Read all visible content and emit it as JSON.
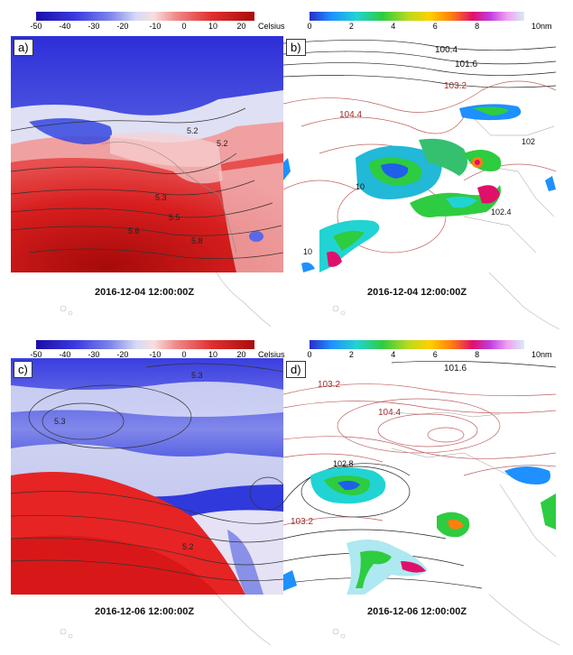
{
  "figure": {
    "temperature_colorbar": {
      "ticks": [
        "-50",
        "-40",
        "-30",
        "-20",
        "-10",
        "0",
        "10",
        "20"
      ],
      "unit": "Celsius",
      "colors": [
        "#1b0ea8",
        "#3a3ae0",
        "#7d85ea",
        "#d6dbf5",
        "#f8dede",
        "#ef8a8a",
        "#e03131",
        "#a80c0c"
      ]
    },
    "visibility_colorbar": {
      "ticks": [
        "0",
        "2",
        "4",
        "6",
        "8"
      ],
      "unit": "10nm",
      "colors": [
        "#2c2cc8",
        "#1e90ff",
        "#22d3d3",
        "#2ecc40",
        "#bada1f",
        "#ffd000",
        "#ff7f0e",
        "#e0106a",
        "#c03ce0",
        "#f0a0f0",
        "#d6ecf6"
      ]
    },
    "panels": [
      {
        "label": "a)",
        "date": "2016-12-04 12:00:00Z",
        "variable": "temperature",
        "contour_labels": [
          "5.2",
          "5.2",
          "5.3",
          "5.5",
          "5.6",
          "5.8"
        ]
      },
      {
        "label": "b)",
        "date": "2016-12-04 12:00:00Z",
        "variable": "visibility",
        "contour_labels": [
          "100.4",
          "101.6",
          "103.2",
          "104.4",
          "102",
          "10",
          "10",
          "102.4"
        ]
      },
      {
        "label": "c)",
        "date": "2016-12-06 12:00:00Z",
        "variable": "temperature",
        "contour_labels": [
          "5.3",
          "5.3",
          "5.2"
        ]
      },
      {
        "label": "d)",
        "date": "2016-12-06 12:00:00Z",
        "variable": "visibility",
        "contour_labels": [
          "101.6",
          "103.2",
          "104.4",
          "102.8",
          "103.2"
        ]
      }
    ]
  }
}
